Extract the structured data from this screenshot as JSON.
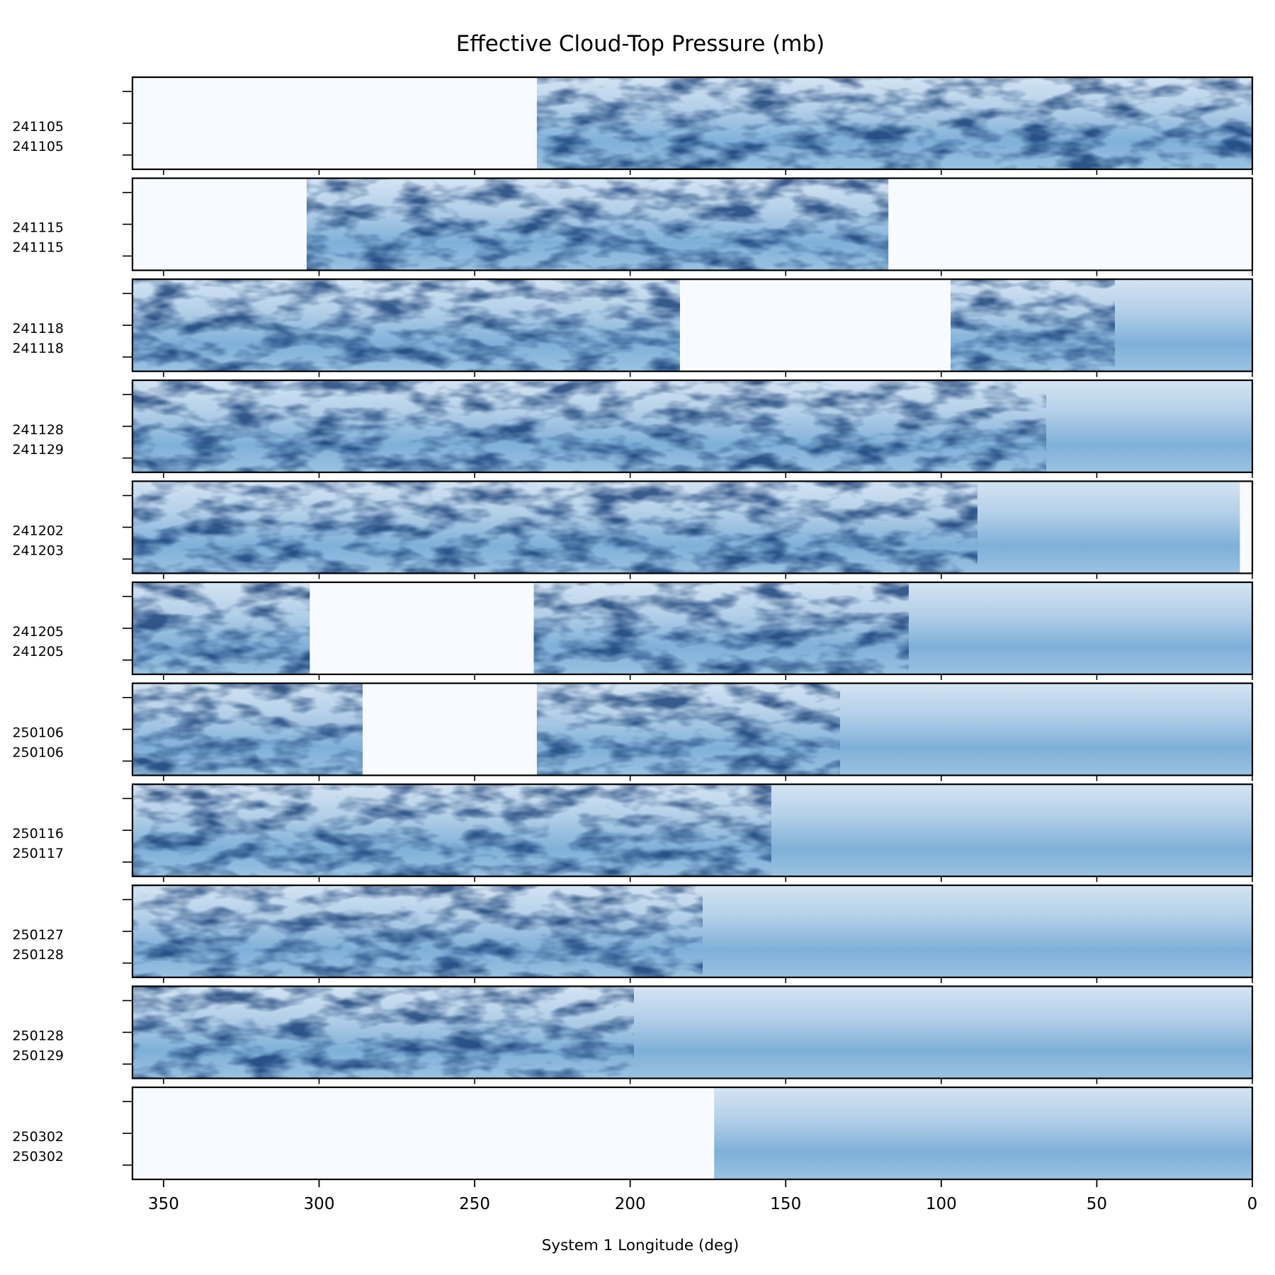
{
  "chart_data": {
    "type": "heatmap",
    "title": "Effective Cloud-Top Pressure (mb)",
    "xlabel": "System 1 Longitude (deg)",
    "ylabel": "",
    "xlim": [
      360,
      0
    ],
    "x_reversed": true,
    "xticks": [
      350,
      300,
      250,
      200,
      150,
      100,
      50,
      0
    ],
    "colormap": "Blues",
    "colors": {
      "low": "#f7fbff",
      "high": "#08306b"
    },
    "grid": false,
    "legend": "none",
    "panels": [
      {
        "label_top": "241105",
        "label_bottom": "241105",
        "coverage": [
          [
            230,
            0
          ]
        ]
      },
      {
        "label_top": "241115",
        "label_bottom": "241115",
        "coverage": [
          [
            304,
            117
          ]
        ]
      },
      {
        "label_top": "241118",
        "label_bottom": "241118",
        "coverage": [
          [
            360,
            184
          ],
          [
            97,
            0
          ]
        ]
      },
      {
        "label_top": "241128",
        "label_bottom": "241129",
        "coverage": [
          [
            360,
            0
          ]
        ]
      },
      {
        "label_top": "241202",
        "label_bottom": "241203",
        "coverage": [
          [
            360,
            4
          ]
        ]
      },
      {
        "label_top": "241205",
        "label_bottom": "241205",
        "coverage": [
          [
            360,
            303
          ],
          [
            231,
            0
          ]
        ]
      },
      {
        "label_top": "250106",
        "label_bottom": "250106",
        "coverage": [
          [
            360,
            286
          ],
          [
            230,
            0
          ]
        ]
      },
      {
        "label_top": "250116",
        "label_bottom": "250117",
        "coverage": [
          [
            360,
            0
          ]
        ]
      },
      {
        "label_top": "250127",
        "label_bottom": "250128",
        "coverage": [
          [
            360,
            0
          ]
        ]
      },
      {
        "label_top": "250128",
        "label_bottom": "250129",
        "coverage": [
          [
            360,
            0
          ]
        ]
      },
      {
        "label_top": "250302",
        "label_bottom": "250302",
        "coverage": [
          [
            173,
            0
          ]
        ]
      }
    ]
  }
}
